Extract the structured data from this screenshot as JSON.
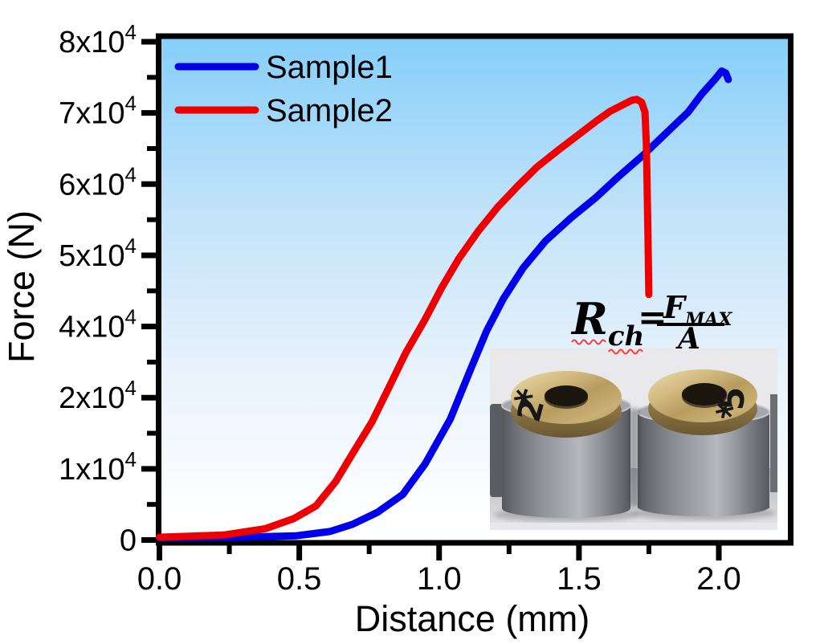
{
  "chart_data": {
    "type": "line",
    "title": "",
    "xlabel": "Distance (mm)",
    "ylabel": "Force (N)",
    "xlim": [
      0.0,
      2.26
    ],
    "x_tick_labels": [
      "0.0",
      "0.5",
      "1.0",
      "1.5",
      "2.0"
    ],
    "x_major_ticks": [
      0.0,
      0.5,
      1.0,
      1.5,
      2.0
    ],
    "x_minor_ticks": [
      0.25,
      0.75,
      1.25,
      1.75
    ],
    "y_ticks": [
      {
        "b": "0",
        "e": ""
      },
      {
        "b": "1x10",
        "e": "4"
      },
      {
        "b": "2x10",
        "e": "4"
      },
      {
        "b": "4x10",
        "e": "4"
      },
      {
        "b": "5x10",
        "e": "4"
      },
      {
        "b": "6x10",
        "e": "4"
      },
      {
        "b": "7x10",
        "e": "4"
      },
      {
        "b": "8x10",
        "e": "4"
      }
    ],
    "legend_position": "top-left inside",
    "grid": false,
    "plot_background_gradient": [
      "#85CEFA",
      "#FFFFFF"
    ],
    "series": [
      {
        "name": "Sample1",
        "color": "#0000EB",
        "points": [
          [
            0,
            300
          ],
          [
            0.29,
            400
          ],
          [
            0.49,
            600
          ],
          [
            0.61,
            1200
          ],
          [
            0.69,
            2200
          ],
          [
            0.78,
            3900
          ],
          [
            0.87,
            6400
          ],
          [
            0.95,
            10700
          ],
          [
            1.04,
            17000
          ],
          [
            1.11,
            27500
          ],
          [
            1.17,
            38800
          ],
          [
            1.23,
            43900
          ],
          [
            1.3,
            48200
          ],
          [
            1.38,
            52000
          ],
          [
            1.47,
            55200
          ],
          [
            1.56,
            58100
          ],
          [
            1.64,
            61000
          ],
          [
            1.73,
            64100
          ],
          [
            1.81,
            67100
          ],
          [
            1.89,
            70100
          ],
          [
            1.94,
            72700
          ],
          [
            1.99,
            74900
          ],
          [
            2.01,
            75900
          ],
          [
            2.025,
            75600
          ],
          [
            2.034,
            74700
          ]
        ]
      },
      {
        "name": "Sample2",
        "color": "#EF0000",
        "points": [
          [
            0,
            400
          ],
          [
            0.23,
            700
          ],
          [
            0.38,
            1600
          ],
          [
            0.48,
            3000
          ],
          [
            0.56,
            4800
          ],
          [
            0.63,
            8200
          ],
          [
            0.69,
            12100
          ],
          [
            0.76,
            16600
          ],
          [
            0.82,
            22800
          ],
          [
            0.88,
            32500
          ],
          [
            0.95,
            41000
          ],
          [
            1.01,
            45500
          ],
          [
            1.07,
            49500
          ],
          [
            1.14,
            53400
          ],
          [
            1.21,
            56800
          ],
          [
            1.28,
            59700
          ],
          [
            1.35,
            62400
          ],
          [
            1.43,
            64900
          ],
          [
            1.5,
            67000
          ],
          [
            1.56,
            68800
          ],
          [
            1.61,
            70200
          ],
          [
            1.66,
            71200
          ],
          [
            1.69,
            71800
          ],
          [
            1.707,
            71900
          ],
          [
            1.724,
            71500
          ],
          [
            1.736,
            70100
          ],
          [
            1.741,
            65600
          ],
          [
            1.744,
            59400
          ],
          [
            1.747,
            52000
          ],
          [
            1.75,
            44500
          ]
        ]
      }
    ]
  },
  "legend": {
    "items": [
      {
        "label": "Sample1",
        "color": "#0000EB"
      },
      {
        "label": "Sample2",
        "color": "#EF0000"
      }
    ]
  },
  "equation": {
    "lhs": "R",
    "lhs_sub": "ch",
    "eq": "=",
    "num": "F",
    "num_sub": "MAX",
    "den": "A"
  },
  "photo": {
    "left_mark": "2",
    "left_scribble": "*",
    "right_mark": "5",
    "right_scribble": "*"
  }
}
